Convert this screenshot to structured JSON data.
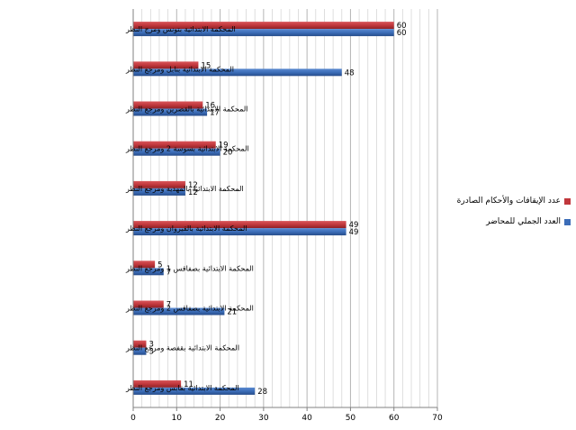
{
  "chart_data": {
    "type": "bar",
    "orientation": "horizontal",
    "title": "",
    "xlabel": "",
    "ylabel": "",
    "xlim": [
      0,
      70
    ],
    "xticks": [
      0,
      10,
      20,
      30,
      40,
      50,
      60,
      70
    ],
    "grid": true,
    "legend_position": "right",
    "categories": [
      "المحكمة الابتدائية بتونس ومرج النظر",
      "المحكمة الابتدائية بنابل ومرجع النظر",
      "المحكمة الابتدائية بالقصرين ومرجع النظر",
      "المحكمة الابتدائية بسوسة 2 ومرجع النظر",
      "المحكمة الابتدائية بالمهدية ومرجع النظر",
      "المحكمة الابتدائية بالقيروان ومرجع النظر",
      "المحكمة الابتدائية بصفاقس 1 ومرجع النظر",
      "المحكمة الابتدائية بصفاقس 2 ومرجع النظر",
      "المحكمة الابتدائية بقفصة ومرجع النظر",
      "المحكمة الابتدائية بقابس ومرجع النظر"
    ],
    "series": [
      {
        "name": "عدد الإيقافات والأحكام الصادرة",
        "color": "#c0373c",
        "values": [
          60,
          15,
          16,
          19,
          12,
          49,
          5,
          7,
          3,
          11
        ]
      },
      {
        "name": "العدد الجملي للمحاضر",
        "color": "#3c6db8",
        "values": [
          60,
          48,
          17,
          20,
          12,
          49,
          7,
          21,
          3,
          28
        ]
      }
    ]
  }
}
